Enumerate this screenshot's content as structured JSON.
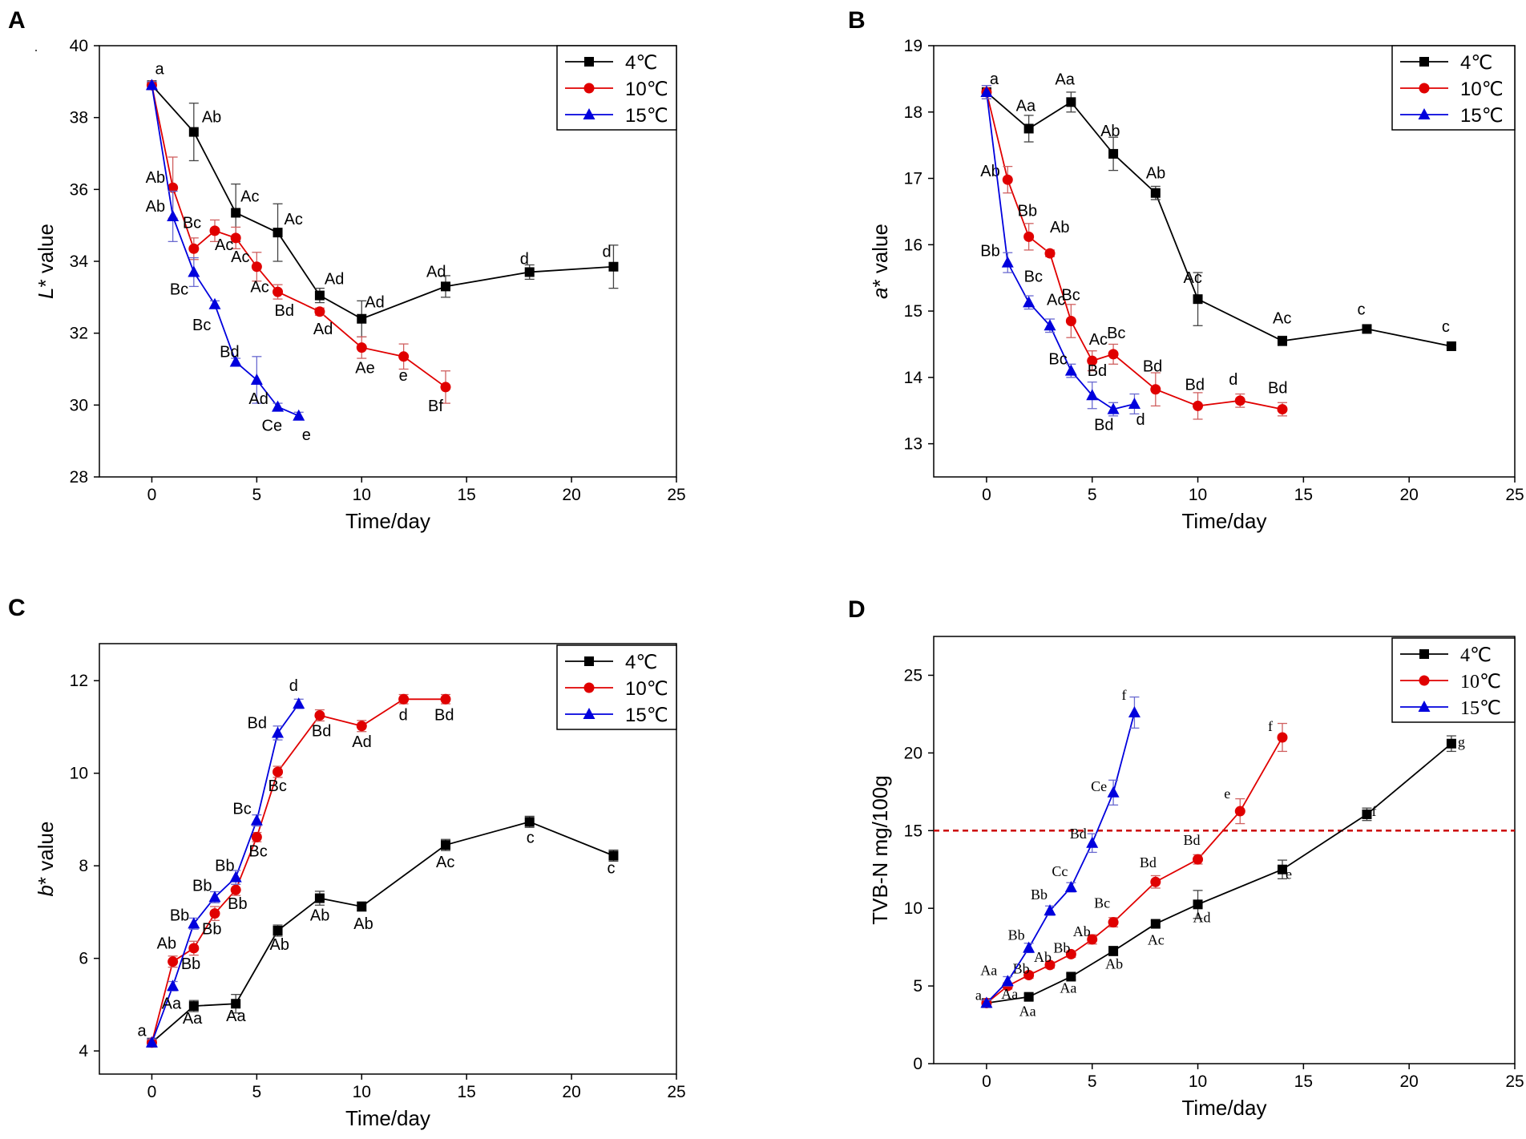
{
  "colors": {
    "c4": "#000000",
    "c10": "#e00000",
    "c15": "#0000dd",
    "threshold": "#cc0000",
    "errorbar4": "#444444",
    "errorbar10": "#d06060",
    "errorbar15": "#6a6ad0"
  },
  "series_names": [
    "4℃",
    "10℃",
    "15℃"
  ],
  "chart_data": [
    {
      "panel": "A",
      "type": "line",
      "xlabel": "Time/day",
      "ylabel_italic": "L",
      "ylabel_rest": "* value",
      "xlim": [
        -2.5,
        25
      ],
      "ylim": [
        28,
        40
      ],
      "xticks": [
        0,
        5,
        10,
        15,
        20,
        25
      ],
      "yticks": [
        28,
        30,
        32,
        34,
        36,
        38,
        40
      ],
      "legend_position": "top-right",
      "series": [
        {
          "name": "4℃",
          "marker": "square",
          "x": [
            0,
            2,
            4,
            6,
            8,
            10,
            14,
            18,
            22
          ],
          "y": [
            38.9,
            37.6,
            35.35,
            34.8,
            33.05,
            32.4,
            33.3,
            33.7,
            33.85
          ],
          "err": [
            0.1,
            0.8,
            0.8,
            0.8,
            0.2,
            0.5,
            0.3,
            0.2,
            0.6
          ],
          "labels": [
            "a",
            "Ab",
            "Ac",
            "Ac",
            "Ad",
            "Ad",
            "Ad",
            "d",
            "d"
          ]
        },
        {
          "name": "10℃",
          "marker": "circle",
          "x": [
            0,
            1,
            2,
            3,
            4,
            5,
            6,
            8,
            10,
            12,
            14
          ],
          "y": [
            38.9,
            36.05,
            34.35,
            34.85,
            34.65,
            33.85,
            33.15,
            32.6,
            31.6,
            31.35,
            30.5
          ],
          "err": [
            0.1,
            0.85,
            0.3,
            0.3,
            0.3,
            0.4,
            0.2,
            0.1,
            0.3,
            0.35,
            0.45
          ],
          "labels": [
            "",
            "Ab",
            "Bc",
            "Ac",
            "Ac",
            "Ac",
            "Bd",
            "Ad",
            "Ae",
            "e",
            "Bf"
          ]
        },
        {
          "name": "15℃",
          "marker": "triangle",
          "x": [
            0,
            1,
            2,
            3,
            4,
            5,
            6,
            7
          ],
          "y": [
            38.9,
            35.25,
            33.7,
            32.8,
            31.2,
            30.7,
            29.95,
            29.7
          ],
          "err": [
            0.1,
            0.7,
            0.4,
            0.1,
            0.1,
            0.65,
            0.1,
            0.1
          ],
          "labels": [
            "",
            "Ab",
            "Bc",
            "Bc",
            "Bd",
            "Ad",
            "Ce",
            "e"
          ]
        }
      ]
    },
    {
      "panel": "B",
      "type": "line",
      "xlabel": "Time/day",
      "ylabel_italic": "a",
      "ylabel_rest": "* value",
      "xlim": [
        -2.5,
        25
      ],
      "ylim": [
        12.5,
        19
      ],
      "xticks": [
        0,
        5,
        10,
        15,
        20,
        25
      ],
      "yticks": [
        13,
        14,
        15,
        16,
        17,
        18,
        19
      ],
      "legend_position": "top-right",
      "series": [
        {
          "name": "4℃",
          "marker": "square",
          "x": [
            0,
            2,
            4,
            6,
            8,
            10,
            14,
            18,
            22
          ],
          "y": [
            18.3,
            17.75,
            18.15,
            17.37,
            16.78,
            15.18,
            14.55,
            14.73,
            14.47
          ],
          "err": [
            0.1,
            0.2,
            0.15,
            0.25,
            0.1,
            0.4,
            0.07,
            0.05,
            0.03
          ],
          "labels": [
            "a",
            "Aa",
            "Aa",
            "Ab",
            "Ab",
            "Ac",
            "Ac",
            "c",
            "c"
          ]
        },
        {
          "name": "10℃",
          "marker": "circle",
          "x": [
            0,
            1,
            2,
            3,
            4,
            5,
            6,
            8,
            10,
            12,
            14
          ],
          "y": [
            18.3,
            16.98,
            16.12,
            15.87,
            14.85,
            14.25,
            14.35,
            13.82,
            13.57,
            13.65,
            13.52
          ],
          "err": [
            0.1,
            0.2,
            0.2,
            0.05,
            0.25,
            0.15,
            0.15,
            0.25,
            0.2,
            0.1,
            0.1
          ],
          "labels": [
            "",
            "Ab",
            "Bb",
            "Ab",
            "Bc",
            "Ac",
            "Bc",
            "Bd",
            "Bd",
            "d",
            "Bd"
          ]
        },
        {
          "name": "15℃",
          "marker": "triangle",
          "x": [
            0,
            1,
            2,
            3,
            4,
            5,
            6,
            7
          ],
          "y": [
            18.3,
            15.73,
            15.13,
            14.78,
            14.1,
            13.73,
            13.52,
            13.6
          ],
          "err": [
            0.1,
            0.15,
            0.1,
            0.1,
            0.1,
            0.2,
            0.1,
            0.15
          ],
          "labels": [
            "",
            "Bb",
            "Bc",
            "Ac",
            "Bc",
            "Bd",
            "Bd",
            "d"
          ]
        }
      ]
    },
    {
      "panel": "C",
      "type": "line",
      "xlabel": "Time/day",
      "ylabel_italic": "b",
      "ylabel_rest": "* value",
      "xlim": [
        -2.5,
        25
      ],
      "ylim": [
        3.5,
        12.8
      ],
      "xticks": [
        0,
        5,
        10,
        15,
        20,
        25
      ],
      "yticks": [
        4,
        6,
        8,
        10,
        12
      ],
      "legend_position": "top-right",
      "series": [
        {
          "name": "4℃",
          "marker": "square",
          "x": [
            0,
            2,
            4,
            6,
            8,
            10,
            14,
            18,
            22
          ],
          "y": [
            4.18,
            4.97,
            5.02,
            6.6,
            7.3,
            7.12,
            8.45,
            8.95,
            8.22
          ],
          "err": [
            0.08,
            0.12,
            0.2,
            0.12,
            0.15,
            0.1,
            0.12,
            0.12,
            0.12
          ],
          "labels": [
            "a",
            "Aa",
            "Aa",
            "Ab",
            "Ab",
            "Ab",
            "Ac",
            "c",
            "c"
          ]
        },
        {
          "name": "10℃",
          "marker": "circle",
          "x": [
            0,
            1,
            2,
            3,
            4,
            5,
            6,
            8,
            10,
            12,
            14
          ],
          "y": [
            4.18,
            5.93,
            6.22,
            6.97,
            7.48,
            8.62,
            10.03,
            11.25,
            11.02,
            11.6,
            11.6
          ],
          "err": [
            0.08,
            0.12,
            0.15,
            0.15,
            0.12,
            0.1,
            0.12,
            0.12,
            0.12,
            0.1,
            0.1
          ],
          "labels": [
            "",
            "Ab",
            "Bb",
            "Bb",
            "Bb",
            "Bc",
            "Bc",
            "Bd",
            "Ad",
            "d",
            "Bd"
          ]
        },
        {
          "name": "15℃",
          "marker": "triangle",
          "x": [
            0,
            1,
            2,
            3,
            4,
            5,
            6,
            7
          ],
          "y": [
            4.18,
            5.4,
            6.75,
            7.32,
            7.75,
            8.98,
            10.87,
            11.5
          ],
          "err": [
            0.08,
            0.1,
            0.12,
            0.12,
            0.15,
            0.12,
            0.15,
            0.1
          ],
          "labels": [
            "",
            "Aa",
            "Bb",
            "Bb",
            "Bb",
            "Bc",
            "Bd",
            "d"
          ]
        }
      ]
    },
    {
      "panel": "D",
      "type": "line",
      "xlabel": "Time/day",
      "ylabel_italic": "",
      "ylabel_rest": "TVB-N mg/100g",
      "xlim": [
        -2.5,
        25
      ],
      "ylim": [
        0,
        27.5
      ],
      "xticks": [
        0,
        5,
        10,
        15,
        20,
        25
      ],
      "yticks": [
        0,
        5,
        10,
        15,
        20,
        25
      ],
      "legend_position": "top-right",
      "threshold": 15,
      "series": [
        {
          "name": "4℃",
          "marker": "square",
          "x": [
            0,
            2,
            4,
            6,
            8,
            10,
            14,
            18,
            22
          ],
          "y": [
            3.9,
            4.3,
            5.6,
            7.25,
            9.0,
            10.25,
            12.5,
            16.05,
            20.6
          ],
          "err": [
            0.2,
            0.2,
            0.2,
            0.3,
            0.2,
            0.9,
            0.6,
            0.4,
            0.5
          ],
          "labels": [
            "a",
            "Aa",
            "Aa",
            "Ab",
            "Ac",
            "Ad",
            "e",
            "f",
            "g"
          ]
        },
        {
          "name": "10℃",
          "marker": "circle",
          "x": [
            0,
            1,
            2,
            3,
            4,
            5,
            6,
            8,
            10,
            12,
            14
          ],
          "y": [
            3.9,
            5.0,
            5.7,
            6.35,
            7.05,
            8.0,
            9.1,
            11.7,
            13.15,
            16.25,
            21.0
          ],
          "err": [
            0.2,
            0.2,
            0.2,
            0.2,
            0.2,
            0.3,
            0.3,
            0.4,
            0.3,
            0.8,
            0.9
          ],
          "labels": [
            "",
            "Aa",
            "Bb",
            "Ab",
            "Bb",
            "Ab",
            "Bc",
            "Bd",
            "Bd",
            "e",
            "f"
          ]
        },
        {
          "name": "15℃",
          "marker": "triangle",
          "x": [
            0,
            1,
            2,
            3,
            4,
            5,
            6,
            7
          ],
          "y": [
            3.9,
            5.3,
            7.45,
            9.85,
            11.35,
            14.2,
            17.45,
            22.6
          ],
          "err": [
            0.2,
            0.3,
            0.3,
            0.3,
            0.3,
            0.6,
            0.8,
            1.0
          ],
          "labels": [
            "",
            "Aa",
            "Bb",
            "Bb",
            "Cc",
            "Bd",
            "Ce",
            "f"
          ]
        }
      ]
    }
  ]
}
